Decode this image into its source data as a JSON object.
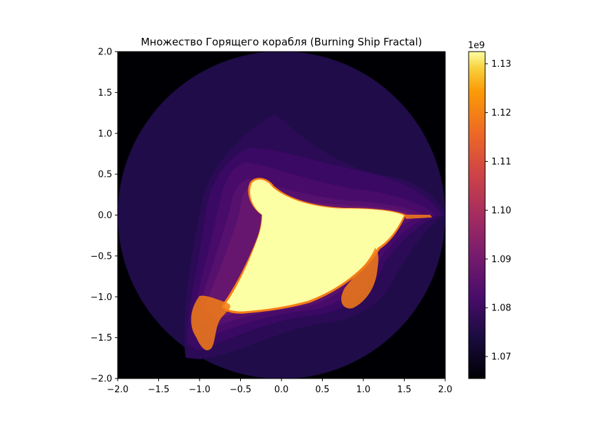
{
  "chart_data": {
    "type": "heatmap",
    "title": "Множество Горящего корабля (Burning Ship Fractal)",
    "xlabel": "",
    "ylabel": "",
    "xlim": [
      -2.0,
      2.0
    ],
    "ylim": [
      -2.0,
      2.0
    ],
    "x_ticks": [
      "−2.0",
      "−1.5",
      "−1.0",
      "−0.5",
      "0.0",
      "0.5",
      "1.0",
      "1.5",
      "2.0"
    ],
    "y_ticks": [
      "−2.0",
      "−1.5",
      "−1.0",
      "−0.5",
      "0.0",
      "0.5",
      "1.0",
      "1.5",
      "2.0"
    ],
    "grid": false,
    "colormap": "inferno",
    "colorbar": {
      "offset_label": "1e9",
      "range": [
        1.0655,
        1.1325
      ],
      "ticks": [
        {
          "value": 1.07,
          "label": "1.07"
        },
        {
          "value": 1.08,
          "label": "1.08"
        },
        {
          "value": 1.09,
          "label": "1.09"
        },
        {
          "value": 1.1,
          "label": "1.10"
        },
        {
          "value": 1.11,
          "label": "1.11"
        },
        {
          "value": 1.12,
          "label": "1.12"
        },
        {
          "value": 1.13,
          "label": "1.13"
        }
      ]
    },
    "regions": {
      "outside_disc_color": "#000004",
      "disc_radius": 2.0,
      "disc_color": "#1f0c48",
      "halo_colors": [
        "#2b0a56",
        "#3a0963",
        "#480b6a",
        "#56106e",
        "#66166e"
      ],
      "set_color": "#fcffa4",
      "set_edge_color": "#f57d15"
    }
  }
}
